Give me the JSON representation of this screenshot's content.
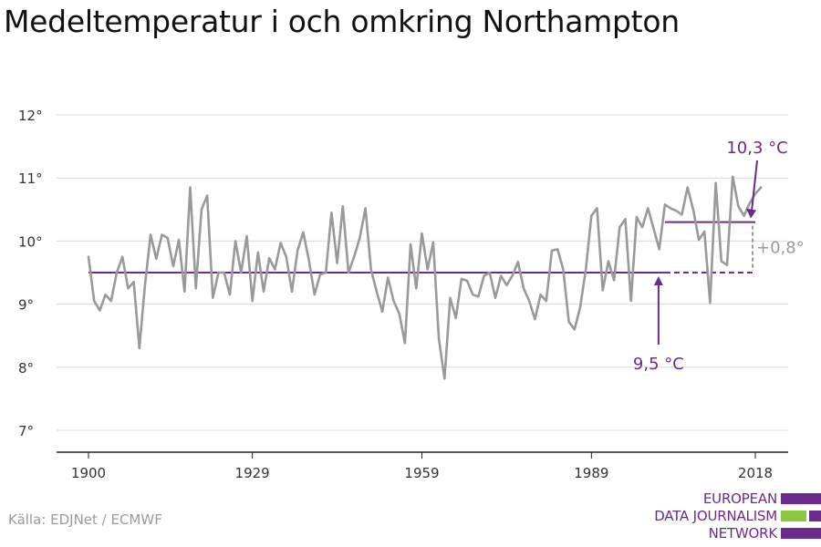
{
  "title": "Medeltemperatur i och omkring Northampton",
  "source": "Källa: EDJNet / ECMWF",
  "logo": {
    "line1": "EUROPEAN",
    "line2": "DATA JOURNALISM",
    "line3": "NETWORK"
  },
  "colors": {
    "series": "#999999",
    "accent": "#6b2a8e",
    "difference": "#9a9a9a",
    "grid": "#d9d9d9",
    "logo_green": "#8cc63f"
  },
  "chart_data": {
    "type": "line",
    "title": "Medeltemperatur i och omkring Northampton",
    "xlabel": "",
    "ylabel": "",
    "xlim": [
      1895,
      2025
    ],
    "ylim": [
      6.8,
      12.3
    ],
    "x_ticks": [
      1900,
      1929,
      1959,
      1989,
      2018
    ],
    "x_tick_labels": [
      "1900",
      "1929",
      "1959",
      "1989",
      "2018"
    ],
    "y_ticks": [
      7,
      8,
      9,
      10,
      11,
      12
    ],
    "y_tick_labels": [
      "7°",
      "8°",
      "9°",
      "10°",
      "11°",
      "12°"
    ],
    "grid": true,
    "series": [
      {
        "x": [
          1900,
          1901,
          1902,
          1903,
          1904,
          1905,
          1906,
          1907,
          1908,
          1909,
          1910,
          1911,
          1912,
          1913,
          1914,
          1915,
          1916,
          1917,
          1918,
          1919,
          1920,
          1921,
          1922,
          1923,
          1924,
          1925,
          1926,
          1927,
          1928,
          1929,
          1930,
          1931,
          1932,
          1933,
          1934,
          1935,
          1936,
          1937,
          1938,
          1939,
          1940,
          1941,
          1942,
          1943,
          1944,
          1945,
          1946,
          1947,
          1948,
          1949,
          1950,
          1951,
          1952,
          1953,
          1954,
          1955,
          1956,
          1957,
          1958,
          1959,
          1960,
          1961,
          1962,
          1963,
          1964,
          1965,
          1966,
          1967,
          1968,
          1969,
          1970,
          1971,
          1972,
          1973,
          1974,
          1975,
          1976,
          1977,
          1978,
          1979,
          1980,
          1981,
          1982,
          1983,
          1984,
          1985,
          1986,
          1987,
          1988,
          1989,
          1990,
          1991,
          1992,
          1993,
          1994,
          1995,
          1996,
          1997,
          1998,
          1999,
          2000,
          2001,
          2002,
          2003,
          2004,
          2005,
          2006,
          2007,
          2008,
          2009,
          2010,
          2011,
          2012,
          2013,
          2014,
          2015,
          2016,
          2017,
          2018,
          2019
        ],
        "values": [
          9.75,
          9.05,
          8.9,
          9.15,
          9.05,
          9.5,
          9.75,
          9.25,
          9.35,
          8.3,
          9.3,
          10.1,
          9.72,
          10.1,
          10.05,
          9.6,
          10.02,
          9.2,
          10.85,
          9.25,
          10.5,
          10.72,
          9.1,
          9.5,
          9.5,
          9.15,
          10.0,
          9.5,
          10.08,
          9.05,
          9.82,
          9.2,
          9.73,
          9.55,
          9.97,
          9.75,
          9.2,
          9.85,
          10.14,
          9.7,
          9.15,
          9.47,
          9.5,
          10.45,
          9.65,
          10.55,
          9.5,
          9.75,
          10.05,
          10.52,
          9.55,
          9.2,
          8.88,
          9.42,
          9.05,
          8.85,
          8.38,
          9.95,
          9.25,
          10.12,
          9.55,
          9.98,
          8.45,
          7.82,
          9.1,
          8.78,
          9.4,
          9.37,
          9.15,
          9.12,
          9.45,
          9.5,
          9.1,
          9.45,
          9.3,
          9.45,
          9.67,
          9.25,
          9.05,
          8.76,
          9.15,
          9.05,
          9.85,
          9.87,
          9.55,
          8.72,
          8.6,
          8.95,
          9.55,
          10.4,
          10.52,
          9.22,
          9.68,
          9.38,
          10.22,
          10.35,
          9.05,
          10.38,
          10.22,
          10.52,
          10.2,
          9.87,
          10.58,
          10.52,
          10.48,
          10.42,
          10.85,
          10.5,
          10.02,
          10.15,
          9.02,
          10.92,
          9.68,
          9.62,
          11.02,
          10.55,
          10.4,
          10.6,
          10.75,
          10.85
        ],
        "color": "#999999"
      }
    ],
    "baseline": {
      "value": 9.5,
      "x_start": 1900,
      "x_end": 2002,
      "x_dashed_end": 2018,
      "label": "9,5 °C"
    },
    "recent": {
      "value": 10.3,
      "x_start": 2002,
      "x_end": 2018,
      "label": "10,3 °C"
    },
    "difference_label": "+0,8°"
  }
}
